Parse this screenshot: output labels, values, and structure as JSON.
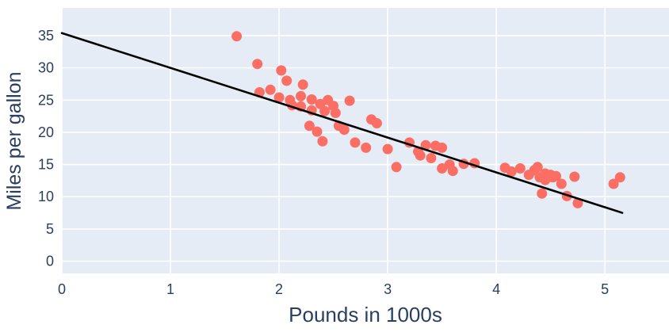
{
  "chart_data": {
    "type": "scatter",
    "title": "",
    "xlabel": "Pounds in 1000s",
    "ylabel": "Miles per gallon",
    "x_ticks": [
      0,
      1,
      2,
      3,
      4,
      5
    ],
    "y_ticks": [
      0,
      5,
      10,
      15,
      20,
      25,
      30,
      35
    ],
    "xlim": [
      0,
      5.59
    ],
    "ylim": [
      -1.9,
      39.3
    ],
    "grid": true,
    "legend_position": "none",
    "panel_bg": "#e5ecf6",
    "grid_color": "#ffffff",
    "point_color": "#fa6e64",
    "line_color": "#000000",
    "text_color": "#2a3f5f",
    "points": {
      "x": [
        1.61,
        1.8,
        1.82,
        1.92,
        2.0,
        2.02,
        2.07,
        2.1,
        2.12,
        2.2,
        2.2,
        2.22,
        2.3,
        2.3,
        2.28,
        2.35,
        2.38,
        2.42,
        2.45,
        2.4,
        2.5,
        2.52,
        2.55,
        2.6,
        2.65,
        2.7,
        2.8,
        2.85,
        2.9,
        3.0,
        3.08,
        3.2,
        3.28,
        3.3,
        3.35,
        3.4,
        3.44,
        3.5,
        3.5,
        3.57,
        3.6,
        3.7,
        3.8,
        4.08,
        4.14,
        4.22,
        4.3,
        4.35,
        4.38,
        4.4,
        4.42,
        4.45,
        4.45,
        4.5,
        4.52,
        4.55,
        4.6,
        4.65,
        4.72,
        4.75,
        5.08,
        5.14
      ],
      "y": [
        34.9,
        30.6,
        26.2,
        26.6,
        25.4,
        29.6,
        28.0,
        25.0,
        24.2,
        25.6,
        24.0,
        27.4,
        25.1,
        23.4,
        21.0,
        20.1,
        24.4,
        23.3,
        25.0,
        18.6,
        24.1,
        23.0,
        21.0,
        20.4,
        24.9,
        18.4,
        17.6,
        22.0,
        21.4,
        17.4,
        14.6,
        18.4,
        17.0,
        16.4,
        18.0,
        16.0,
        17.9,
        17.6,
        14.4,
        15.0,
        14.0,
        15.1,
        15.2,
        14.5,
        13.9,
        14.4,
        13.4,
        14.1,
        14.6,
        13.0,
        10.5,
        13.6,
        12.6,
        13.4,
        13.0,
        13.2,
        12.0,
        10.1,
        13.1,
        9.0,
        12.0,
        13.0
      ]
    },
    "trendline": {
      "x": [
        0,
        5.16
      ],
      "y": [
        35.4,
        7.5
      ]
    }
  }
}
